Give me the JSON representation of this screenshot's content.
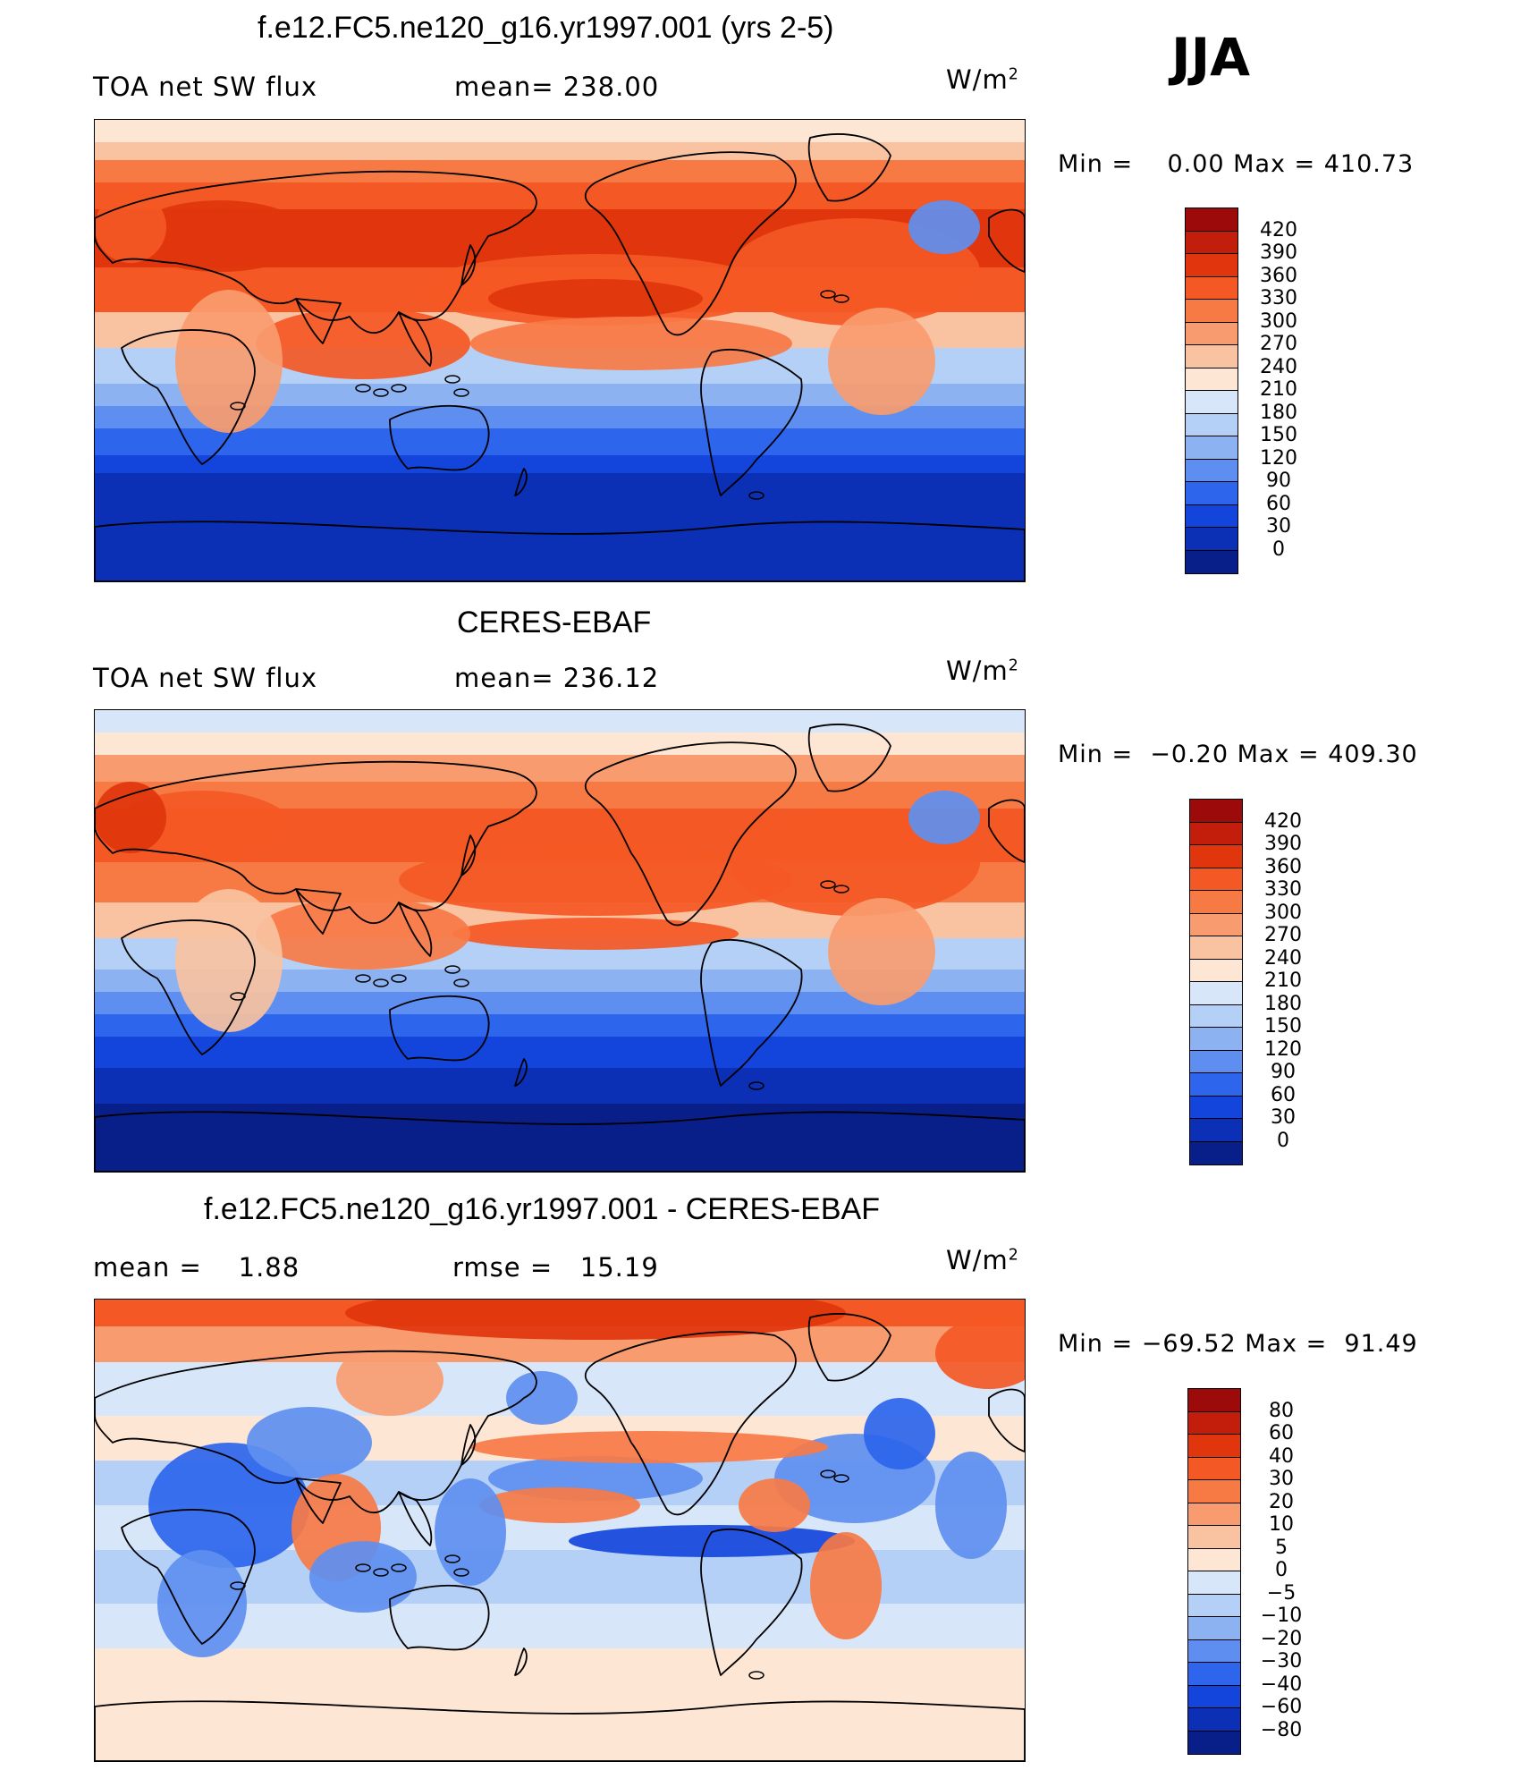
{
  "season": "JJA",
  "unit_base": "W/m",
  "unit_exp": "2",
  "panels": [
    {
      "title": "f.e12.FC5.ne120_g16.yr1997.001 (yrs 2-5)",
      "left_label": "TOA net SW flux",
      "mid_label": "mean= 238.00",
      "minmax": "Min =    0.00 Max = 410.73",
      "levels": [
        "420",
        "390",
        "360",
        "330",
        "300",
        "270",
        "240",
        "210",
        "180",
        "150",
        "120",
        "90",
        "60",
        "30",
        "0"
      ],
      "colors": [
        "#9c0a0a",
        "#c21e0b",
        "#e0350d",
        "#f45824",
        "#f77a45",
        "#f89c6f",
        "#f9c2a0",
        "#fde6d4",
        "#d7e7f9",
        "#b5d0f6",
        "#8db2f2",
        "#5e8ff0",
        "#2d65ec",
        "#1345dc",
        "#0b2fb5",
        "#081f8a"
      ]
    },
    {
      "title": "CERES-EBAF",
      "left_label": "TOA net SW flux",
      "mid_label": "mean= 236.12",
      "minmax": "Min =  −0.20 Max = 409.30",
      "levels": [
        "420",
        "390",
        "360",
        "330",
        "300",
        "270",
        "240",
        "210",
        "180",
        "150",
        "120",
        "90",
        "60",
        "30",
        "0"
      ],
      "colors": [
        "#9c0a0a",
        "#c21e0b",
        "#e0350d",
        "#f45824",
        "#f77a45",
        "#f89c6f",
        "#f9c2a0",
        "#fde6d4",
        "#d7e7f9",
        "#b5d0f6",
        "#8db2f2",
        "#5e8ff0",
        "#2d65ec",
        "#1345dc",
        "#0b2fb5",
        "#081f8a"
      ]
    },
    {
      "title": "f.e12.FC5.ne120_g16.yr1997.001 - CERES-EBAF",
      "left_label": "mean =    1.88",
      "mid_label": "rmse =   15.19",
      "minmax": "Min = −69.52 Max =  91.49",
      "levels": [
        "80",
        "60",
        "40",
        "30",
        "20",
        "10",
        "5",
        "0",
        "−5",
        "−10",
        "−20",
        "−30",
        "−40",
        "−60",
        "−80"
      ],
      "colors": [
        "#9c0a0a",
        "#c21e0b",
        "#e0350d",
        "#f45824",
        "#f77a45",
        "#f89c6f",
        "#f9c2a0",
        "#fde6d4",
        "#d7e7f9",
        "#b5d0f6",
        "#8db2f2",
        "#5e8ff0",
        "#2d65ec",
        "#1345dc",
        "#0b2fb5",
        "#081f8a"
      ]
    }
  ]
}
